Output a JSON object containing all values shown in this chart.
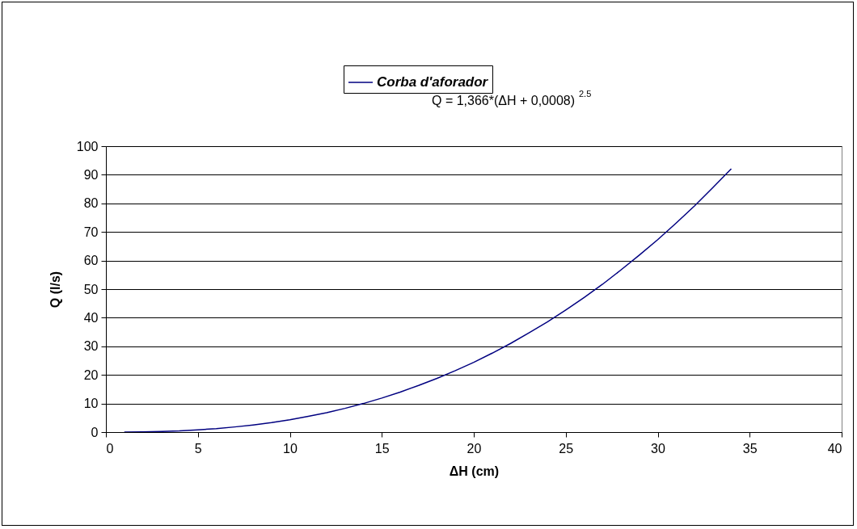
{
  "chart_data": {
    "type": "line",
    "xlabel": "ΔH (cm)",
    "ylabel": "Q (l/s)",
    "annotations": [
      "Q = 1,366*(ΔH + 0,0008) $^{2.5}$"
    ],
    "x": [
      1,
      2,
      3,
      4,
      5,
      6,
      7,
      8,
      9,
      10,
      11,
      12,
      13,
      14,
      15,
      16,
      17,
      18,
      19,
      20,
      21,
      22,
      23,
      24,
      25,
      26,
      27,
      28,
      29,
      30,
      31,
      32,
      33,
      34
    ],
    "series": [
      {
        "name": "Corba d'aforador",
        "color": "#000080",
        "values": [
          0,
          0.1,
          0.2,
          0.4,
          0.8,
          1.2,
          1.8,
          2.5,
          3.3,
          4.3,
          5.5,
          6.8,
          8.3,
          10,
          11.9,
          14,
          16.3,
          18.8,
          21.5,
          24.4,
          27.6,
          31,
          34.7,
          38.5,
          42.7,
          47.1,
          51.7,
          56.7,
          61.9,
          67.3,
          73.1,
          79.1,
          85.5,
          92.1
        ]
      }
    ],
    "xlim": [
      0,
      40
    ],
    "xticks": [
      0,
      5,
      10,
      15,
      20,
      25,
      30,
      35,
      40
    ],
    "ylim": [
      0,
      100
    ],
    "yticks": [
      0,
      10,
      20,
      30,
      40,
      50,
      60,
      70,
      80,
      90,
      100
    ],
    "grid": "y",
    "legend": "top",
    "marker": "none",
    "line_style": "solid"
  }
}
